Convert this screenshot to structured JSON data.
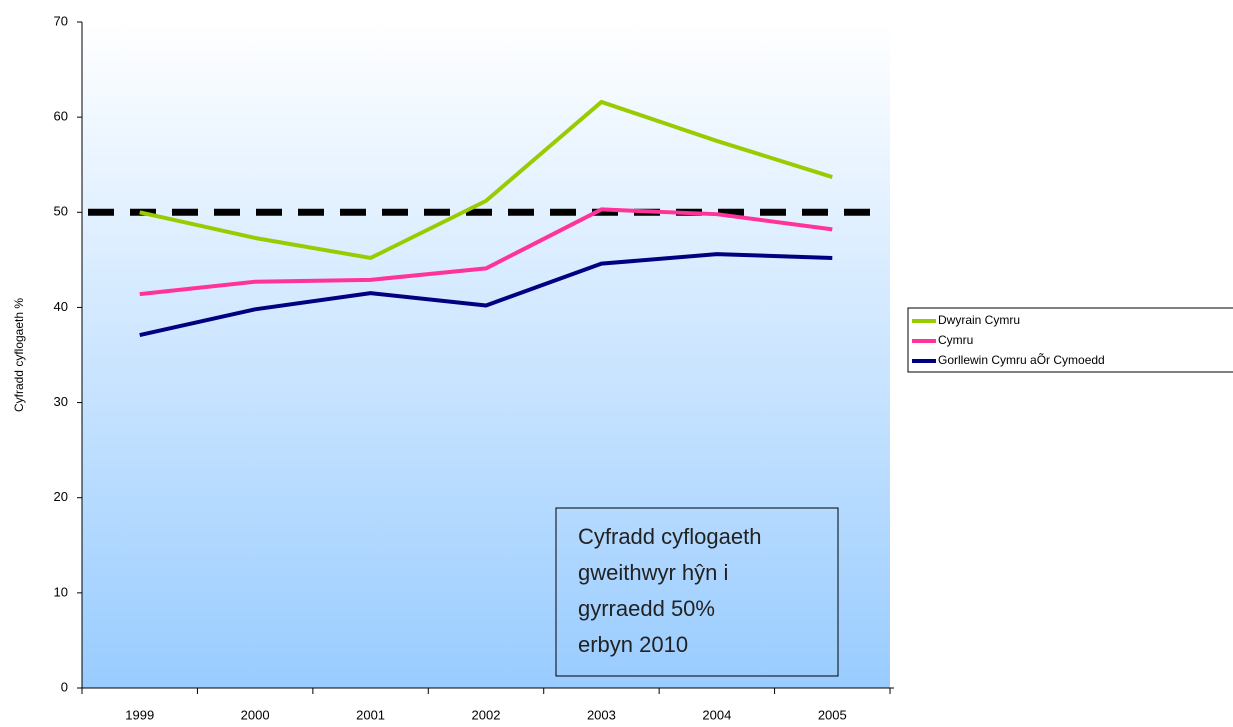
{
  "chart_data": {
    "type": "line",
    "y_axis_label": "Cyfradd cyflogaeth %",
    "categories": [
      "1999",
      "2000",
      "2001",
      "2002",
      "2003",
      "2004",
      "2005"
    ],
    "series": [
      {
        "name": "Dwyrain Cymru",
        "color": "#99cc00",
        "values": [
          50.0,
          47.3,
          45.2,
          51.2,
          61.6,
          57.5,
          53.7
        ]
      },
      {
        "name": "Cymru",
        "color": "#ff3399",
        "values": [
          41.4,
          42.7,
          42.9,
          44.1,
          50.3,
          49.8,
          48.2
        ]
      },
      {
        "name": "Gorllewin Cymru aÕr Cymoedd",
        "color": "#000080",
        "values": [
          37.1,
          39.8,
          41.5,
          40.2,
          44.6,
          45.6,
          45.2
        ]
      }
    ],
    "target_line": 50,
    "annotation": [
      "Cyfradd cyflogaeth",
      "gweithwyr hŷn i",
      "gyrraedd 50%",
      "erbyn 2010"
    ],
    "ylim": [
      0,
      70
    ],
    "yticks": [
      0,
      10,
      20,
      30,
      40,
      50,
      60,
      70
    ]
  }
}
